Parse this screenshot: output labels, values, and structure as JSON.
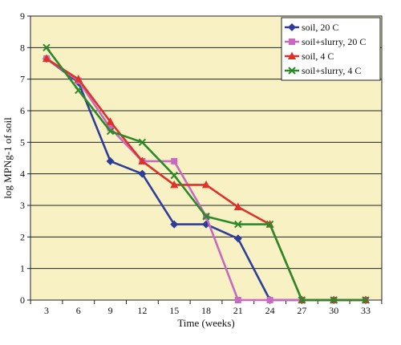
{
  "chart_data": {
    "type": "line",
    "title": "",
    "xlabel": "Time (weeks)",
    "ylabel": "log MPNg-1 of soil",
    "x_ticks": [
      3,
      6,
      9,
      12,
      15,
      18,
      21,
      24,
      27,
      30,
      33
    ],
    "xlim": [
      3,
      33
    ],
    "y_ticks": [
      0,
      1,
      2,
      3,
      4,
      5,
      6,
      7,
      8,
      9
    ],
    "ylim": [
      0,
      9
    ],
    "grid": "horizontal",
    "legend_position": "top-right",
    "plot_background": "#f8f1c4",
    "series": [
      {
        "name": "soil, 20 C",
        "color": "#2e3d9a",
        "marker": "diamond",
        "x": [
          3,
          6,
          9,
          12,
          15,
          18,
          21,
          24,
          27,
          30,
          33
        ],
        "y": [
          7.65,
          6.9,
          4.4,
          4.0,
          2.4,
          2.4,
          1.95,
          0,
          0,
          0,
          0
        ]
      },
      {
        "name": "soil+slurry, 20 C",
        "color": "#c86ac0",
        "marker": "square",
        "x": [
          3,
          6,
          9,
          12,
          15,
          18,
          21,
          24,
          27,
          30,
          33
        ],
        "y": [
          7.65,
          6.95,
          5.45,
          4.4,
          4.4,
          2.65,
          0,
          0,
          0,
          0,
          0
        ]
      },
      {
        "name": "soil, 4 C",
        "color": "#e0302a",
        "marker": "triangle",
        "x": [
          3,
          6,
          9,
          12,
          15,
          18,
          21,
          24,
          27,
          30,
          33
        ],
        "y": [
          7.65,
          7.0,
          5.65,
          4.4,
          3.65,
          3.65,
          2.95,
          2.4,
          0,
          0,
          0
        ]
      },
      {
        "name": "soil+slurry, 4 C",
        "color": "#2a8a2a",
        "marker": "cross",
        "x": [
          3,
          6,
          9,
          12,
          15,
          18,
          21,
          24,
          27,
          30,
          33
        ],
        "y": [
          8.0,
          6.65,
          5.35,
          5.0,
          3.95,
          2.65,
          2.4,
          2.4,
          0,
          0,
          0
        ]
      }
    ]
  }
}
